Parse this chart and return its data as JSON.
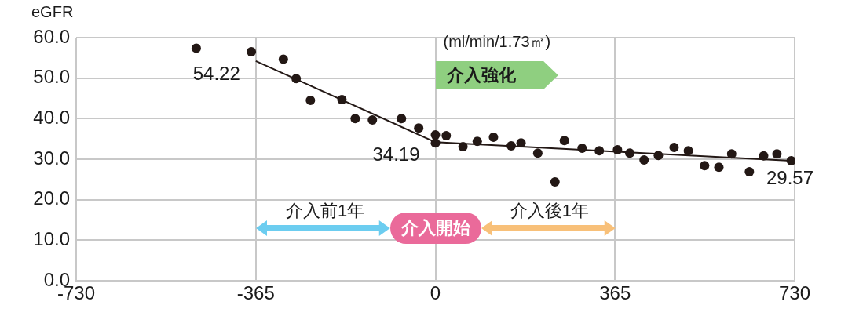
{
  "chart_data": {
    "type": "scatter",
    "ylabel": "eGFR",
    "xlim": [
      -730,
      730
    ],
    "xticks": [
      -730,
      -365,
      0,
      365,
      730
    ],
    "ylim": [
      0,
      60
    ],
    "yticks": [
      {
        "value": 0,
        "label": "0.0"
      },
      {
        "value": 10,
        "label": "10.0"
      },
      {
        "value": 20,
        "label": "20.0"
      },
      {
        "value": 30,
        "label": "30.0"
      },
      {
        "value": 40,
        "label": "40.0"
      },
      {
        "value": 50,
        "label": "50.0"
      },
      {
        "value": 60,
        "label": "60.0"
      }
    ],
    "grid": true,
    "legend": false,
    "series": [
      {
        "type": "scatter",
        "color": "#231815",
        "marker": "circle",
        "x": [
          -486,
          -374,
          -309,
          -283,
          -254,
          -190,
          -163,
          -128,
          -69,
          -34,
          0,
          0,
          22,
          56,
          85,
          118,
          154,
          174,
          208,
          243,
          262,
          298,
          333,
          370,
          395,
          424,
          453,
          485,
          514,
          547,
          576,
          602,
          638,
          667,
          694,
          723
        ],
        "values": [
          57.4,
          56.5,
          54.7,
          49.9,
          44.5,
          44.7,
          40.0,
          39.7,
          40.0,
          37.7,
          36.0,
          34.0,
          35.8,
          33.1,
          34.4,
          35.4,
          33.3,
          34.0,
          31.5,
          24.4,
          34.6,
          32.7,
          32.1,
          32.3,
          31.5,
          29.8,
          30.9,
          32.9,
          32.1,
          28.4,
          28.0,
          31.3,
          26.9,
          30.8,
          31.3,
          29.6
        ]
      },
      {
        "type": "line",
        "color": "#231815",
        "marker": "none",
        "line_style": "solid",
        "x": [
          -365,
          0,
          730
        ],
        "values": [
          54.22,
          34.19,
          29.57
        ],
        "value_labels": [
          "54.22",
          "34.19",
          "29.57"
        ]
      }
    ],
    "annotations": [
      "(ml/min/1.73㎡)",
      "介入強化",
      "介入前1年",
      "介入開始",
      "介入後1年"
    ]
  }
}
